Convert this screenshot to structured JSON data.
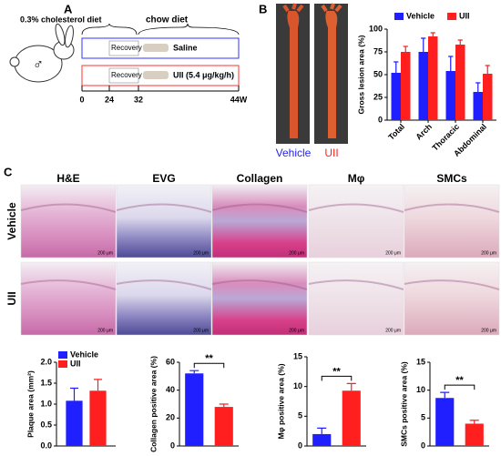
{
  "panels": {
    "a": {
      "letter": "A",
      "diet1": "0.3% cholesterol diet",
      "diet2": "chow diet",
      "recovery": "Recovery",
      "saline": "Saline",
      "uii": "UII (5.4 μg/kg/h)",
      "sex": "♂",
      "timeline": [
        "0",
        "24",
        "32",
        "44W"
      ]
    },
    "b": {
      "letter": "B",
      "labels": [
        "Vehicle",
        "UII"
      ]
    },
    "c": {
      "letter": "C",
      "columns": [
        "H&E",
        "EVG",
        "Collagen",
        "Mφ",
        "SMCs"
      ],
      "rows": [
        "Vehicle",
        "UII"
      ],
      "scale": "200 μm"
    }
  },
  "chart_data": [
    {
      "type": "bar",
      "ylabel": "Gross lesion area (%)",
      "categories": [
        "Total",
        "Arch",
        "Thoracic",
        "Abdominal"
      ],
      "series": [
        {
          "name": "Vehicle",
          "color": "#1f1fff",
          "values": [
            52,
            75,
            54,
            31
          ],
          "errors": [
            12,
            15,
            16,
            10
          ]
        },
        {
          "name": "UII",
          "color": "#ff1f1f",
          "values": [
            75,
            92,
            83,
            51
          ],
          "errors": [
            6,
            4,
            5,
            9
          ]
        }
      ],
      "ylim": [
        0,
        100
      ],
      "yticks": [
        0,
        25,
        50,
        75,
        100
      ],
      "legend": "top"
    },
    {
      "type": "bar",
      "ylabel": "Plaque area (mm²)",
      "categories": [
        null
      ],
      "series": [
        {
          "name": "Vehicle",
          "color": "#1f1fff",
          "values": [
            1.08
          ],
          "errors": [
            0.3
          ]
        },
        {
          "name": "UII",
          "color": "#ff1f1f",
          "values": [
            1.32
          ],
          "errors": [
            0.27
          ]
        }
      ],
      "ylim": [
        0,
        2
      ],
      "yticks": [
        {
          "value": 0,
          "label": "0.0"
        },
        0.5,
        {
          "value": 1,
          "label": "1.0"
        },
        1.5,
        {
          "value": 2,
          "label": "2.0"
        }
      ],
      "legend": "top-left"
    },
    {
      "type": "bar",
      "ylabel": "Collagen positive area (%)",
      "categories": [
        null,
        null
      ],
      "values": [
        52,
        28
      ],
      "errors": [
        2,
        2
      ],
      "colors": [
        "#1f1fff",
        "#ff1f1f"
      ],
      "ylim": [
        0,
        60
      ],
      "yticks": [
        0,
        20,
        40,
        60
      ],
      "annotation": "**"
    },
    {
      "type": "bar",
      "ylabel": "Mφ positive area (%)",
      "categories": [
        null,
        null
      ],
      "values": [
        2,
        9.3
      ],
      "errors": [
        1,
        1.2
      ],
      "colors": [
        "#1f1fff",
        "#ff1f1f"
      ],
      "ylim": [
        0,
        15
      ],
      "yticks": [
        0,
        5,
        10,
        15
      ],
      "annotation": "**"
    },
    {
      "type": "bar",
      "ylabel": "SMCs positive area (%)",
      "categories": [
        null,
        null
      ],
      "values": [
        8.6,
        4
      ],
      "errors": [
        1,
        0.6
      ],
      "colors": [
        "#1f1fff",
        "#ff1f1f"
      ],
      "ylim": [
        0,
        15
      ],
      "yticks": [
        0,
        5,
        10,
        15
      ],
      "annotation": "**"
    }
  ]
}
